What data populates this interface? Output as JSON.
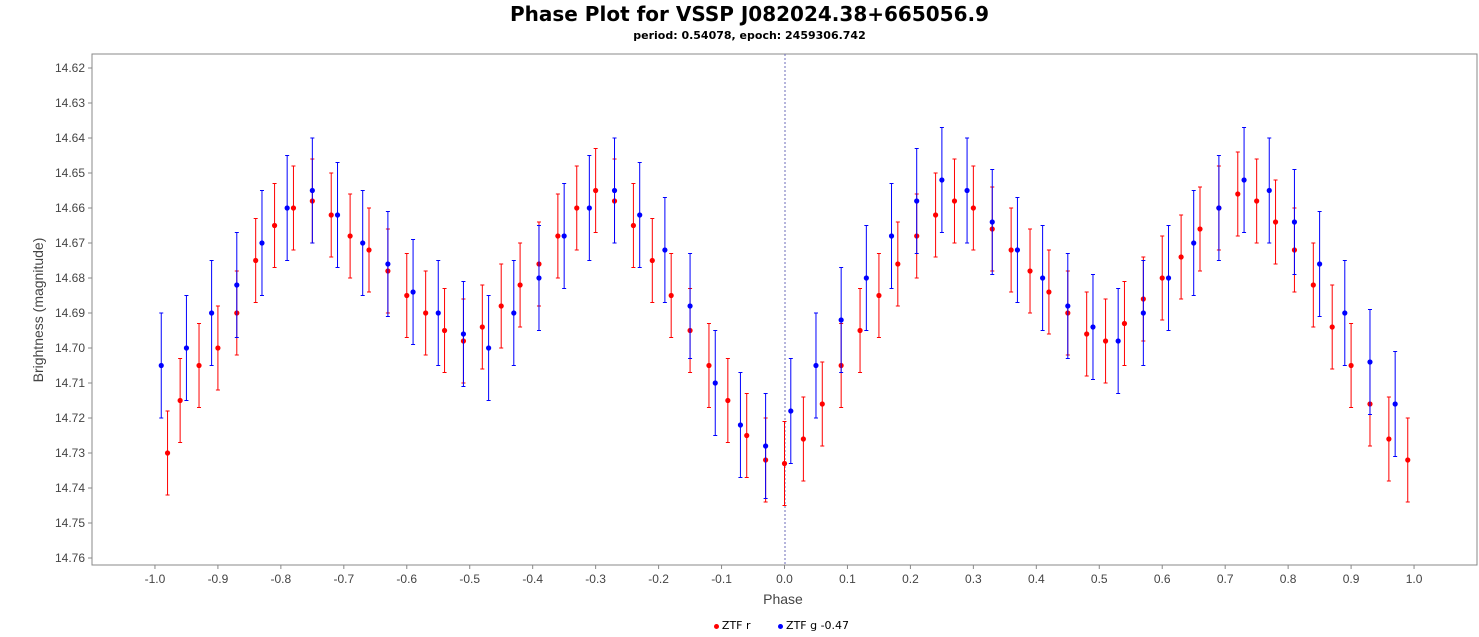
{
  "chart_data": {
    "type": "scatter",
    "title": "Phase Plot for VSSP J082024.38+665056.9",
    "subtitle": "period: 0.54078, epoch: 2459306.742",
    "xlabel": "Phase",
    "ylabel": "Brightness (magnitude)",
    "xlim": [
      -1.1,
      1.1
    ],
    "ylim": [
      14.762,
      14.616
    ],
    "y_inverted": true,
    "x_ticks": [
      "-1.0",
      "-0.9",
      "-0.8",
      "-0.7",
      "-0.6",
      "-0.5",
      "-0.4",
      "-0.3",
      "-0.2",
      "-0.1",
      "0.0",
      "0.1",
      "0.2",
      "0.3",
      "0.4",
      "0.5",
      "0.6",
      "0.7",
      "0.8",
      "0.9",
      "1.0"
    ],
    "y_ticks": [
      "14.62",
      "14.63",
      "14.64",
      "14.65",
      "14.66",
      "14.67",
      "14.68",
      "14.69",
      "14.70",
      "14.71",
      "14.72",
      "14.73",
      "14.74",
      "14.75",
      "14.76"
    ],
    "grid": false,
    "legend_position": "bottom",
    "series": [
      {
        "name": "ZTF r",
        "color": "#ff0000",
        "error": 0.012,
        "x": [
          -0.98,
          -0.96,
          -0.93,
          -0.9,
          -0.87,
          -0.84,
          -0.81,
          -0.78,
          -0.75,
          -0.72,
          -0.69,
          -0.66,
          -0.63,
          -0.6,
          -0.57,
          -0.54,
          -0.51,
          -0.48,
          -0.45,
          -0.42,
          -0.39,
          -0.36,
          -0.33,
          -0.3,
          -0.27,
          -0.24,
          -0.21,
          -0.18,
          -0.15,
          -0.12,
          -0.09,
          -0.06,
          -0.03,
          0.0,
          0.03,
          0.06,
          0.09,
          0.12,
          0.15,
          0.18,
          0.21,
          0.24,
          0.27,
          0.3,
          0.33,
          0.36,
          0.39,
          0.42,
          0.45,
          0.48,
          0.51,
          0.54,
          0.57,
          0.6,
          0.63,
          0.66,
          0.69,
          0.72,
          0.75,
          0.78,
          0.81,
          0.84,
          0.87,
          0.9,
          0.93,
          0.96,
          0.99
        ],
        "y": [
          14.73,
          14.715,
          14.705,
          14.7,
          14.69,
          14.675,
          14.665,
          14.66,
          14.658,
          14.662,
          14.668,
          14.672,
          14.678,
          14.685,
          14.69,
          14.695,
          14.698,
          14.694,
          14.688,
          14.682,
          14.676,
          14.668,
          14.66,
          14.655,
          14.658,
          14.665,
          14.675,
          14.685,
          14.695,
          14.705,
          14.715,
          14.725,
          14.732,
          14.733,
          14.726,
          14.716,
          14.705,
          14.695,
          14.685,
          14.676,
          14.668,
          14.662,
          14.658,
          14.66,
          14.666,
          14.672,
          14.678,
          14.684,
          14.69,
          14.696,
          14.698,
          14.693,
          14.686,
          14.68,
          14.674,
          14.666,
          14.66,
          14.656,
          14.658,
          14.664,
          14.672,
          14.682,
          14.694,
          14.705,
          14.716,
          14.726,
          14.732
        ]
      },
      {
        "name": "ZTF g -0.47",
        "color": "#0000ff",
        "error": 0.015,
        "x": [
          -0.99,
          -0.95,
          -0.91,
          -0.87,
          -0.83,
          -0.79,
          -0.75,
          -0.71,
          -0.67,
          -0.63,
          -0.59,
          -0.55,
          -0.51,
          -0.47,
          -0.43,
          -0.39,
          -0.35,
          -0.31,
          -0.27,
          -0.23,
          -0.19,
          -0.15,
          -0.11,
          -0.07,
          -0.03,
          0.01,
          0.05,
          0.09,
          0.13,
          0.17,
          0.21,
          0.25,
          0.29,
          0.33,
          0.37,
          0.41,
          0.45,
          0.49,
          0.53,
          0.57,
          0.61,
          0.65,
          0.69,
          0.73,
          0.77,
          0.81,
          0.85,
          0.89,
          0.93,
          0.97
        ],
        "y": [
          14.705,
          14.7,
          14.69,
          14.682,
          14.67,
          14.66,
          14.655,
          14.662,
          14.67,
          14.676,
          14.684,
          14.69,
          14.696,
          14.7,
          14.69,
          14.68,
          14.668,
          14.66,
          14.655,
          14.662,
          14.672,
          14.688,
          14.71,
          14.722,
          14.728,
          14.718,
          14.705,
          14.692,
          14.68,
          14.668,
          14.658,
          14.652,
          14.655,
          14.664,
          14.672,
          14.68,
          14.688,
          14.694,
          14.698,
          14.69,
          14.68,
          14.67,
          14.66,
          14.652,
          14.655,
          14.664,
          14.676,
          14.69,
          14.704,
          14.716
        ]
      }
    ]
  }
}
